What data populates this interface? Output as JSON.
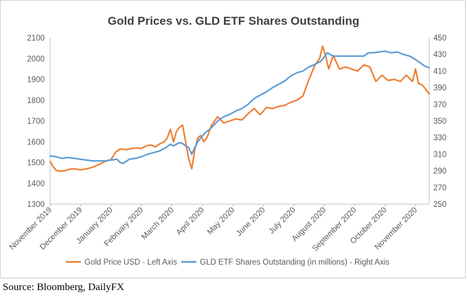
{
  "chart_data": {
    "type": "line",
    "title": "Gold Prices vs. GLD ETF Shares Outstanding",
    "categories": [
      "November 2019",
      "December 2019",
      "January 2020",
      "February 2020",
      "March 2020",
      "April 2020",
      "May 2020",
      "June 2020",
      "July 2020",
      "August 2020",
      "September 2020",
      "October 2020",
      "November 2020"
    ],
    "y_left": {
      "min": 1300,
      "max": 2100,
      "ticks": [
        "1300",
        "1400",
        "1500",
        "1600",
        "1700",
        "1800",
        "1900",
        "2000",
        "2100"
      ]
    },
    "y_right": {
      "min": 250,
      "max": 450,
      "ticks": [
        "250",
        "270",
        "290",
        "310",
        "330",
        "350",
        "370",
        "390",
        "410",
        "430",
        "450"
      ]
    },
    "grid": false,
    "legend_position": "bottom",
    "series": [
      {
        "name": "Gold Price USD - Left Axis",
        "axis": "left",
        "color": "#ED7D31",
        "x": [
          0,
          0.1,
          0.2,
          0.35,
          0.5,
          0.65,
          0.8,
          1.0,
          1.2,
          1.4,
          1.6,
          1.8,
          2.0,
          2.15,
          2.3,
          2.5,
          2.7,
          2.85,
          3.0,
          3.15,
          3.3,
          3.45,
          3.6,
          3.75,
          3.85,
          3.95,
          4.05,
          4.15,
          4.25,
          4.35,
          4.45,
          4.55,
          4.65,
          4.75,
          4.85,
          4.95,
          5.05,
          5.15,
          5.3,
          5.5,
          5.7,
          5.9,
          6.1,
          6.3,
          6.5,
          6.7,
          6.9,
          7.1,
          7.3,
          7.5,
          7.7,
          7.9,
          8.1,
          8.3,
          8.5,
          8.7,
          8.85,
          8.95,
          9.05,
          9.15,
          9.3,
          9.5,
          9.7,
          9.9,
          10.1,
          10.3,
          10.5,
          10.7,
          10.9,
          11.1,
          11.3,
          11.5,
          11.7,
          11.9,
          12.0,
          12.1,
          12.2,
          12.3,
          12.45
        ],
        "values": [
          1505,
          1480,
          1462,
          1458,
          1462,
          1468,
          1470,
          1465,
          1470,
          1478,
          1490,
          1505,
          1515,
          1550,
          1565,
          1562,
          1568,
          1570,
          1568,
          1580,
          1585,
          1575,
          1590,
          1600,
          1620,
          1660,
          1600,
          1650,
          1670,
          1680,
          1600,
          1520,
          1470,
          1560,
          1620,
          1630,
          1600,
          1620,
          1680,
          1720,
          1690,
          1700,
          1710,
          1705,
          1735,
          1760,
          1730,
          1765,
          1760,
          1770,
          1775,
          1790,
          1800,
          1820,
          1900,
          1970,
          2000,
          2060,
          2010,
          1950,
          2015,
          1950,
          1960,
          1950,
          1940,
          1970,
          1960,
          1890,
          1920,
          1895,
          1900,
          1890,
          1920,
          1890,
          1950,
          1880,
          1875,
          1860,
          1830
        ]
      },
      {
        "name": "GLD ETF Shares Outstanding (in millions) - Right Axis",
        "axis": "right",
        "color": "#5B9BD5",
        "x": [
          0,
          0.2,
          0.4,
          0.6,
          0.8,
          1.0,
          1.2,
          1.4,
          1.6,
          1.8,
          2.0,
          2.2,
          2.3,
          2.4,
          2.6,
          2.8,
          3.0,
          3.2,
          3.4,
          3.6,
          3.8,
          3.95,
          4.05,
          4.15,
          4.25,
          4.35,
          4.45,
          4.55,
          4.65,
          4.75,
          4.85,
          4.95,
          5.1,
          5.3,
          5.5,
          5.7,
          5.9,
          6.1,
          6.3,
          6.5,
          6.7,
          6.9,
          7.1,
          7.3,
          7.5,
          7.7,
          7.9,
          8.1,
          8.3,
          8.5,
          8.7,
          8.9,
          9.1,
          9.3,
          9.5,
          9.7,
          9.9,
          10.1,
          10.3,
          10.45,
          10.6,
          10.8,
          11.0,
          11.2,
          11.4,
          11.6,
          11.8,
          12.0,
          12.15,
          12.3,
          12.45
        ],
        "values": [
          308,
          307,
          305,
          306,
          305,
          304,
          303,
          302,
          302,
          302,
          303,
          304,
          300,
          299,
          304,
          305,
          307,
          310,
          312,
          314,
          318,
          322,
          320,
          322,
          324,
          323,
          320,
          318,
          310,
          318,
          325,
          330,
          336,
          342,
          350,
          355,
          358,
          362,
          365,
          370,
          377,
          381,
          385,
          390,
          394,
          398,
          404,
          408,
          410,
          415,
          418,
          422,
          432,
          428,
          428,
          428,
          428,
          428,
          428,
          432,
          432,
          433,
          434,
          432,
          433,
          430,
          428,
          424,
          420,
          416,
          414
        ]
      }
    ]
  },
  "footer": {
    "source": "Source: Bloomberg, DailyFX"
  }
}
